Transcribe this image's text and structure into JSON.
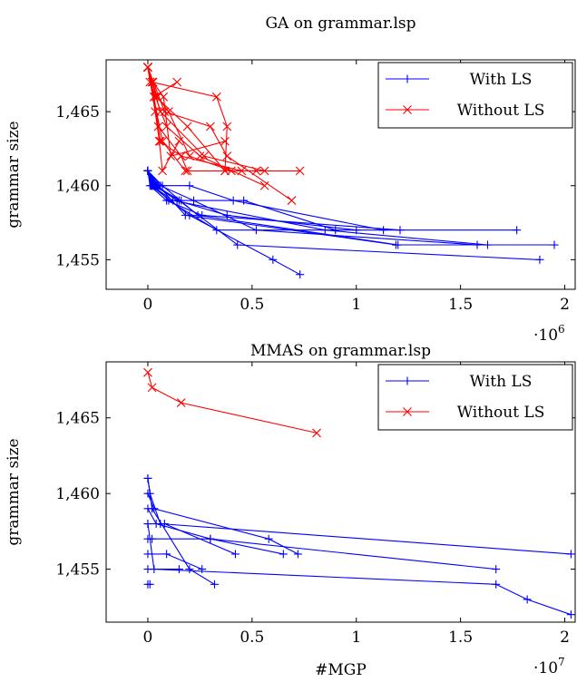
{
  "chart_data": [
    {
      "type": "line",
      "title": "GA on grammar.lsp",
      "xlabel": "",
      "ylabel": "grammar size",
      "x_multiplier": "·10^6",
      "x_multiplier_base": "·10",
      "x_multiplier_exp": "6",
      "xlim": [
        -200000,
        2050000
      ],
      "ylim": [
        1453,
        1468.5
      ],
      "xticks": [
        0,
        500000,
        1000000,
        1500000,
        2000000
      ],
      "xtick_labels": [
        "0",
        "0.5",
        "1",
        "1.5",
        "2"
      ],
      "yticks": [
        1455,
        1460,
        1465
      ],
      "ytick_labels": [
        "1,455",
        "1,460",
        "1,465"
      ],
      "legend_position": "top-right",
      "series": [
        {
          "name": "With LS",
          "color": "#0000ff",
          "marker": "plus",
          "runs": [
            [
              [
                0,
                1461
              ],
              [
                15000,
                1460
              ],
              [
                200000,
                1458
              ],
              [
                600000,
                1455
              ],
              [
                730000,
                1454
              ]
            ],
            [
              [
                0,
                1461
              ],
              [
                40000,
                1460
              ],
              [
                150000,
                1459
              ],
              [
                430000,
                1456
              ],
              [
                1880000,
                1455
              ]
            ],
            [
              [
                0,
                1461
              ],
              [
                30000,
                1460
              ],
              [
                100000,
                1459
              ],
              [
                330000,
                1457
              ],
              [
                1770000,
                1457
              ]
            ],
            [
              [
                0,
                1461
              ],
              [
                50000,
                1460
              ],
              [
                180000,
                1458
              ],
              [
                1190000,
                1456
              ],
              [
                1950000,
                1456
              ]
            ],
            [
              [
                0,
                1461
              ],
              [
                60000,
                1460
              ],
              [
                220000,
                1459
              ],
              [
                520000,
                1457
              ],
              [
                1580000,
                1456
              ]
            ],
            [
              [
                0,
                1461
              ],
              [
                20000,
                1460
              ],
              [
                120000,
                1459
              ],
              [
                850000,
                1457
              ],
              [
                1630000,
                1456
              ]
            ],
            [
              [
                0,
                1461
              ],
              [
                10000,
                1460
              ],
              [
                90000,
                1459
              ],
              [
                260000,
                1458
              ],
              [
                1210000,
                1457
              ]
            ],
            [
              [
                0,
                1461
              ],
              [
                35000,
                1460
              ],
              [
                140000,
                1459
              ],
              [
                380000,
                1458
              ],
              [
                1000000,
                1457
              ]
            ],
            [
              [
                0,
                1461
              ],
              [
                45000,
                1460
              ],
              [
                200000,
                1460
              ],
              [
                410000,
                1459
              ],
              [
                1130000,
                1457
              ]
            ],
            [
              [
                0,
                1461
              ],
              [
                25000,
                1460
              ],
              [
                160000,
                1459
              ],
              [
                460000,
                1459
              ],
              [
                900000,
                1457
              ]
            ],
            [
              [
                0,
                1461
              ],
              [
                70000,
                1460
              ],
              [
                240000,
                1458
              ],
              [
                1200000,
                1456
              ]
            ]
          ]
        },
        {
          "name": "Without LS",
          "color": "#ff0000",
          "marker": "cross",
          "runs": [
            [
              [
                0,
                1468
              ],
              [
                30000,
                1466
              ],
              [
                140000,
                1467
              ]
            ],
            [
              [
                0,
                1468
              ],
              [
                20000,
                1467
              ],
              [
                330000,
                1466
              ],
              [
                380000,
                1464
              ],
              [
                370000,
                1461
              ]
            ],
            [
              [
                0,
                1468
              ],
              [
                40000,
                1466
              ],
              [
                190000,
                1464
              ],
              [
                370000,
                1461
              ],
              [
                730000,
                1461
              ]
            ],
            [
              [
                0,
                1468
              ],
              [
                60000,
                1465
              ],
              [
                270000,
                1462
              ],
              [
                560000,
                1461
              ]
            ],
            [
              [
                0,
                1468
              ],
              [
                50000,
                1464
              ],
              [
                160000,
                1462
              ],
              [
                450000,
                1461
              ]
            ],
            [
              [
                0,
                1468
              ],
              [
                70000,
                1463
              ],
              [
                180000,
                1461
              ],
              [
                520000,
                1461
              ]
            ],
            [
              [
                0,
                1468
              ],
              [
                80000,
                1465
              ],
              [
                300000,
                1464
              ],
              [
                380000,
                1462
              ],
              [
                690000,
                1459
              ]
            ],
            [
              [
                0,
                1468
              ],
              [
                10000,
                1467
              ],
              [
                90000,
                1464
              ],
              [
                250000,
                1462
              ],
              [
                560000,
                1460
              ]
            ],
            [
              [
                0,
                1468
              ],
              [
                45000,
                1466
              ],
              [
                100000,
                1465
              ],
              [
                200000,
                1462
              ],
              [
                400000,
                1461
              ]
            ],
            [
              [
                0,
                1468
              ],
              [
                30000,
                1466
              ],
              [
                60000,
                1463
              ],
              [
                160000,
                1462
              ],
              [
                190000,
                1461
              ]
            ],
            [
              [
                0,
                1468
              ],
              [
                25000,
                1467
              ],
              [
                75000,
                1466
              ],
              [
                110000,
                1462
              ],
              [
                370000,
                1463
              ]
            ],
            [
              [
                0,
                1468
              ],
              [
                35000,
                1465
              ],
              [
                55000,
                1463
              ],
              [
                70000,
                1461
              ],
              [
                150000,
                1463
              ]
            ]
          ]
        }
      ]
    },
    {
      "type": "line",
      "title": "MMAS on grammar.lsp",
      "xlabel": "#MGP",
      "ylabel": "grammar size",
      "x_multiplier": "·10^7",
      "x_multiplier_base": "·10",
      "x_multiplier_exp": "7",
      "xlim": [
        -2000000,
        20500000
      ],
      "ylim": [
        1451.5,
        1468.7
      ],
      "xticks": [
        0,
        5000000,
        10000000,
        15000000,
        20000000
      ],
      "xtick_labels": [
        "0",
        "0.5",
        "1",
        "1.5",
        "2"
      ],
      "yticks": [
        1455,
        1460,
        1465
      ],
      "ytick_labels": [
        "1,455",
        "1,460",
        "1,465"
      ],
      "legend_position": "top-right",
      "series": [
        {
          "name": "With LS",
          "color": "#0000ff",
          "marker": "plus",
          "runs": [
            [
              [
                0,
                1461
              ],
              [
                200000,
                1459
              ],
              [
                2000000,
                1455
              ],
              [
                3200000,
                1454
              ]
            ],
            [
              [
                0,
                1461
              ],
              [
                100000,
                1460
              ],
              [
                600000,
                1458
              ],
              [
                20300000,
                1456
              ]
            ],
            [
              [
                0,
                1460
              ],
              [
                300000,
                1459
              ],
              [
                5800000,
                1457
              ],
              [
                7200000,
                1456
              ]
            ],
            [
              [
                0,
                1459
              ],
              [
                400000,
                1458
              ],
              [
                3000000,
                1457
              ],
              [
                6500000,
                1456
              ]
            ],
            [
              [
                0,
                1458
              ],
              [
                800000,
                1458
              ],
              [
                4200000,
                1456
              ]
            ],
            [
              [
                0,
                1457
              ],
              [
                200000,
                1457
              ],
              [
                3000000,
                1457
              ],
              [
                16700000,
                1455
              ]
            ],
            [
              [
                0,
                1456
              ],
              [
                900000,
                1456
              ],
              [
                2600000,
                1455
              ]
            ],
            [
              [
                0,
                1455
              ],
              [
                1500000,
                1455
              ]
            ],
            [
              [
                0,
                1454
              ],
              [
                100000,
                1454
              ]
            ],
            [
              [
                0,
                1458
              ],
              [
                300000,
                1455
              ],
              [
                16700000,
                1454
              ],
              [
                18200000,
                1453
              ],
              [
                20300000,
                1452
              ]
            ]
          ]
        },
        {
          "name": "Without LS",
          "color": "#ff0000",
          "marker": "cross",
          "runs": [
            [
              [
                0,
                1468
              ],
              [
                200000,
                1467
              ],
              [
                1600000,
                1466
              ],
              [
                8100000,
                1464
              ]
            ]
          ]
        }
      ]
    }
  ]
}
